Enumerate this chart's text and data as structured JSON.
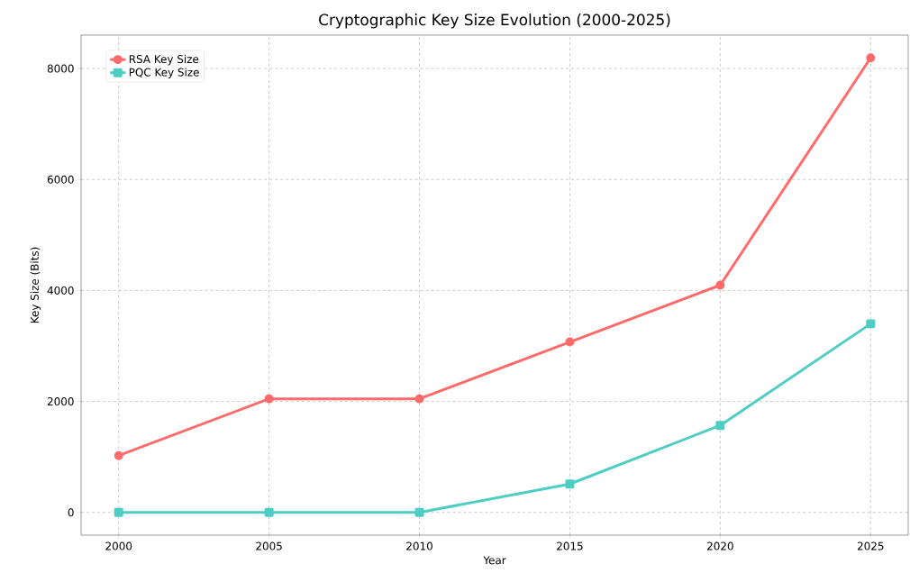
{
  "chart_data": {
    "type": "line",
    "title": "Cryptographic Key Size Evolution (2000-2025)",
    "xlabel": "Year",
    "ylabel": "Key Size (Bits)",
    "x": [
      2000,
      2005,
      2010,
      2015,
      2020,
      2025
    ],
    "series": [
      {
        "name": "RSA Key Size",
        "color": "#ff6b6b",
        "marker": "circle",
        "values": [
          1024,
          2048,
          2048,
          3072,
          4096,
          8192
        ]
      },
      {
        "name": "PQC Key Size",
        "color": "#4ecdc4",
        "marker": "square",
        "values": [
          0,
          0,
          0,
          512,
          1568,
          3400
        ]
      }
    ],
    "xlim": [
      1998.75,
      2026.25
    ],
    "xticks": [
      2000,
      2005,
      2010,
      2015,
      2020,
      2025
    ],
    "ylim": [
      -409.6,
      8601.6
    ],
    "yticks": [
      0,
      2000,
      4000,
      6000,
      8000
    ],
    "grid": true,
    "legend": "top left",
    "line_style": "solid"
  }
}
